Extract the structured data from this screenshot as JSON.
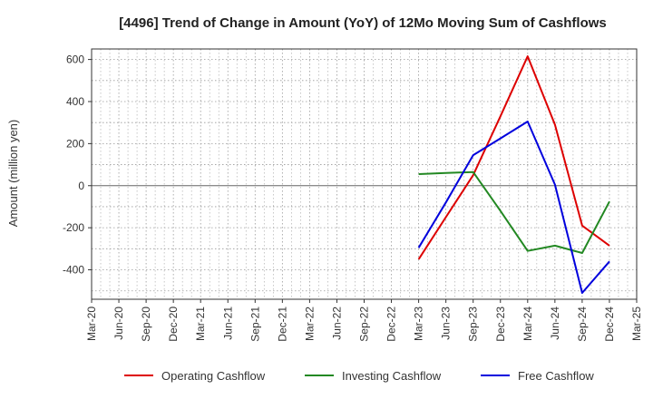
{
  "chart_data": {
    "type": "line",
    "title": "[4496]  Trend of Change in Amount (YoY) of 12Mo Moving Sum of Cashflows",
    "xlabel": "",
    "ylabel": "Amount (million yen)",
    "categories": [
      "Mar-20",
      "Jun-20",
      "Sep-20",
      "Dec-20",
      "Mar-21",
      "Jun-21",
      "Sep-21",
      "Dec-21",
      "Mar-22",
      "Jun-22",
      "Sep-22",
      "Dec-22",
      "Mar-23",
      "Jun-23",
      "Sep-23",
      "Dec-23",
      "Mar-24",
      "Jun-24",
      "Sep-24",
      "Dec-24",
      "Mar-25"
    ],
    "ylim": [
      -540,
      650
    ],
    "yticks": [
      -400,
      -200,
      0,
      200,
      400,
      600
    ],
    "yticklabels": [
      "-400",
      "-200",
      "0",
      "200",
      "400",
      "600"
    ],
    "grid": true,
    "legend_position": "bottom",
    "series": [
      {
        "name": "Operating Cashflow",
        "color": "#dd0000",
        "values": [
          null,
          null,
          null,
          null,
          null,
          null,
          null,
          null,
          null,
          null,
          null,
          null,
          -350,
          -150,
          50,
          330,
          615,
          290,
          -190,
          -285,
          null
        ]
      },
      {
        "name": "Investing Cashflow",
        "color": "#228822",
        "values": [
          null,
          null,
          null,
          null,
          null,
          null,
          null,
          null,
          null,
          null,
          null,
          null,
          55,
          60,
          65,
          -120,
          -310,
          -285,
          -320,
          -75,
          null
        ]
      },
      {
        "name": "Free Cashflow",
        "color": "#0000dd",
        "values": [
          null,
          null,
          null,
          null,
          null,
          null,
          null,
          null,
          null,
          null,
          null,
          null,
          -295,
          -80,
          145,
          225,
          305,
          5,
          -510,
          -360,
          null
        ]
      }
    ]
  }
}
